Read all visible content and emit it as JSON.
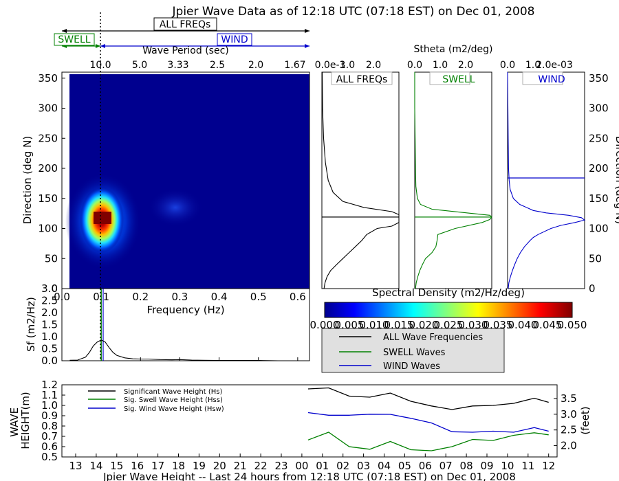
{
  "title": "Jpier Wave Data as of 12:18 UTC (07:18 EST) on Dec 01, 2008",
  "period_bar": {
    "all_label": "ALL FREQs",
    "swell_label": "SWELL",
    "wind_label": "WIND",
    "axis_label": "Wave Period (sec)",
    "ticks": [
      "10.0",
      "5.0",
      "3.33",
      "2.5",
      "2.0",
      "1.67"
    ]
  },
  "colors": {
    "all": "#000000",
    "swell": "#008000",
    "wind": "#0000cc",
    "legend_bg": "#e0e0e0"
  },
  "chart_data": [
    {
      "id": "directional-spectrum",
      "type": "heatmap",
      "xlabel": "Frequency (Hz)",
      "ylabel": "Direction (deg N)",
      "xlim": [
        0.0,
        0.63
      ],
      "ylim": [
        0,
        360
      ],
      "x_ticks": [
        "0.0",
        "0.1",
        "0.2",
        "0.3",
        "0.4",
        "0.5",
        "0.6"
      ],
      "y_ticks": [
        "0",
        "50",
        "100",
        "150",
        "200",
        "250",
        "300",
        "350"
      ],
      "peak": {
        "frequency": 0.1,
        "direction": 119,
        "value": 0.05
      },
      "separation_frequency": 0.1,
      "colorbar": {
        "label": "Spectral Density (m2/Hz/deg)",
        "range": [
          0.0,
          0.05
        ],
        "ticks": [
          "0.000",
          "0.005",
          "0.010",
          "0.015",
          "0.020",
          "0.025",
          "0.030",
          "0.035",
          "0.040",
          "0.045",
          "0.050"
        ]
      }
    },
    {
      "id": "frequency-spectrum",
      "type": "line",
      "ylabel": "Sf (m2/Hz)",
      "xlim": [
        0.0,
        0.63
      ],
      "ylim": [
        0,
        3.0
      ],
      "y_ticks": [
        "0.0",
        "0.5",
        "1.0",
        "1.5",
        "2.0",
        "2.5",
        "3.0"
      ],
      "x": [
        0.02,
        0.04,
        0.06,
        0.07,
        0.08,
        0.09,
        0.1,
        0.11,
        0.12,
        0.13,
        0.14,
        0.16,
        0.18,
        0.2,
        0.22,
        0.25,
        0.28,
        0.3,
        0.33,
        0.36,
        0.4,
        0.45,
        0.5,
        0.55,
        0.6,
        0.63
      ],
      "values": [
        0.02,
        0.03,
        0.15,
        0.35,
        0.62,
        0.78,
        0.86,
        0.78,
        0.55,
        0.35,
        0.22,
        0.12,
        0.08,
        0.07,
        0.07,
        0.05,
        0.04,
        0.05,
        0.03,
        0.02,
        0.01,
        0.01,
        0.01,
        0.0,
        0.0,
        0.0
      ],
      "swell_peak_frequency": 0.1,
      "wind_peak_frequency": 0.105
    },
    {
      "id": "stheta-all",
      "type": "line",
      "title": "ALL FREQs",
      "xlabel": "Stheta (m2/deg)",
      "x_ticks": [
        "0.0e-3",
        "1.0",
        "2.0"
      ],
      "xlim": [
        0,
        2.2
      ],
      "ylim": [
        0,
        360
      ],
      "mean_direction": 119,
      "direction": [
        0,
        10,
        20,
        30,
        40,
        50,
        60,
        70,
        80,
        90,
        100,
        104,
        110,
        115,
        119,
        123,
        128,
        135,
        145,
        160,
        180,
        210,
        250,
        300,
        360
      ],
      "values": [
        0.06,
        0.09,
        0.15,
        0.25,
        0.42,
        0.6,
        0.78,
        0.96,
        1.14,
        1.28,
        1.58,
        2.0,
        2.2,
        2.2,
        2.2,
        2.2,
        2.0,
        1.2,
        0.6,
        0.32,
        0.18,
        0.1,
        0.05,
        0.02,
        0.01
      ]
    },
    {
      "id": "stheta-swell",
      "type": "line",
      "title": "SWELL",
      "x_ticks": [
        "0.0",
        "1.0",
        "2.0"
      ],
      "xlim": [
        0,
        2.0
      ],
      "ylim": [
        0,
        360
      ],
      "mean_direction": 119,
      "direction": [
        0,
        10,
        20,
        30,
        40,
        50,
        60,
        70,
        80,
        90,
        100,
        110,
        115,
        119,
        122,
        126,
        132,
        140,
        150,
        170,
        200,
        250,
        300,
        360
      ],
      "values": [
        0.02,
        0.04,
        0.08,
        0.13,
        0.2,
        0.28,
        0.45,
        0.55,
        0.58,
        0.6,
        1.05,
        1.75,
        1.95,
        2.0,
        1.95,
        1.35,
        0.45,
        0.15,
        0.07,
        0.03,
        0.02,
        0.01,
        0.0,
        0.0
      ]
    },
    {
      "id": "stheta-wind",
      "type": "line",
      "title": "WIND",
      "x_ticks": [
        "0.0",
        "1.0",
        "2.0e-03"
      ],
      "xlim": [
        0,
        2.4
      ],
      "ylim": [
        0,
        360
      ],
      "mean_direction": 184,
      "direction": [
        0,
        10,
        20,
        30,
        40,
        50,
        60,
        70,
        80,
        85,
        90,
        100,
        105,
        110,
        114,
        118,
        122,
        126,
        130,
        140,
        150,
        165,
        180,
        200,
        250,
        300,
        360
      ],
      "values": [
        0.02,
        0.04,
        0.09,
        0.15,
        0.22,
        0.3,
        0.4,
        0.53,
        0.7,
        0.8,
        0.95,
        1.35,
        1.65,
        2.1,
        2.4,
        2.3,
        1.9,
        1.2,
        0.8,
        0.38,
        0.18,
        0.08,
        0.05,
        0.03,
        0.02,
        0.01,
        0.0
      ]
    },
    {
      "id": "wave-height",
      "type": "line",
      "xlabel": "Jpier Wave Height -- Last 24 hours from 12:18 UTC (07:18 EST) on Dec 01, 2008",
      "ylabel": "WAVE HEIGHT(m)",
      "ylabel_right": "(feet)",
      "ylim": [
        0.5,
        1.2
      ],
      "y_ticks": [
        "0.5",
        "0.6",
        "0.7",
        "0.8",
        "0.9",
        "1.0",
        "1.1",
        "1.2"
      ],
      "y_ticks_right": [
        "2.0",
        "2.5",
        "3.0",
        "3.5"
      ],
      "categories": [
        "13",
        "14",
        "15",
        "16",
        "17",
        "18",
        "19",
        "20",
        "21",
        "22",
        "23",
        "00",
        "01",
        "02",
        "03",
        "04",
        "05",
        "06",
        "07",
        "08",
        "09",
        "10",
        "11",
        "12"
      ],
      "x": [
        11.3,
        12.3,
        13.3,
        14.3,
        15.3,
        16.3,
        17.3,
        18.3,
        19.3,
        20.3,
        21.3,
        22.3,
        23.0
      ],
      "series": [
        {
          "name": "Significant Wave Height (Hs)",
          "color": "#000000",
          "values": [
            1.16,
            1.17,
            1.09,
            1.08,
            1.12,
            1.04,
            0.995,
            0.96,
            0.995,
            1.0,
            1.02,
            1.07,
            1.03
          ]
        },
        {
          "name": "Sig. Swell Wave Height (Hss)",
          "color": "#008000",
          "values": [
            0.665,
            0.74,
            0.6,
            0.575,
            0.65,
            0.57,
            0.56,
            0.6,
            0.67,
            0.66,
            0.71,
            0.735,
            0.715
          ]
        },
        {
          "name": "Sig. Wind Wave Height (Hsw)",
          "color": "#0000cc",
          "values": [
            0.93,
            0.905,
            0.905,
            0.915,
            0.913,
            0.875,
            0.83,
            0.745,
            0.74,
            0.75,
            0.74,
            0.785,
            0.75
          ]
        }
      ]
    }
  ],
  "legend": {
    "all": "ALL Wave Frequencies",
    "swell": "SWELL Waves",
    "wind": "WIND Waves"
  }
}
